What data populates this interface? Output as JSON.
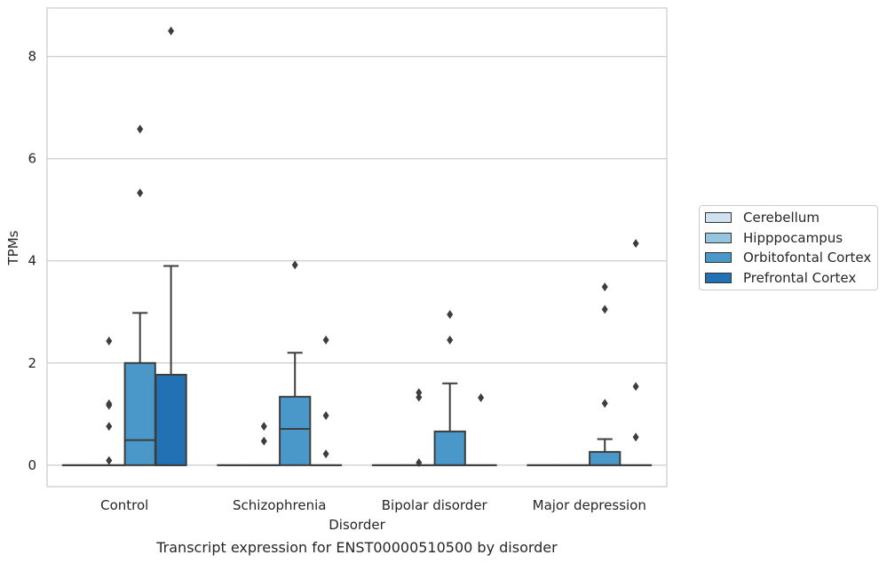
{
  "chart_data": {
    "type": "box",
    "title": "",
    "caption": "Transcript expression for ENST00000510500 by disorder",
    "xlabel": "Disorder",
    "ylabel": "TPMs",
    "categories": [
      "Control",
      "Schizophrenia",
      "Bipolar disorder",
      "Major depression"
    ],
    "ylim": [
      -0.42,
      8.95
    ],
    "yticks": [
      0,
      2,
      4,
      6,
      8
    ],
    "grid": true,
    "legend_position": "right",
    "series": [
      {
        "name": "Cerebellum",
        "color": "#d0e1f2",
        "boxes": [
          {
            "q1": 0,
            "median": 0,
            "q3": 0,
            "whislo": 0,
            "whishi": 0,
            "fliers": []
          },
          {
            "q1": 0,
            "median": 0,
            "q3": 0,
            "whislo": 0,
            "whishi": 0,
            "fliers": []
          },
          {
            "q1": 0,
            "median": 0,
            "q3": 0,
            "whislo": 0,
            "whishi": 0,
            "fliers": []
          },
          {
            "q1": 0,
            "median": 0,
            "q3": 0,
            "whislo": 0,
            "whishi": 0,
            "fliers": []
          }
        ]
      },
      {
        "name": "Hipppocampus",
        "color": "#94c4df",
        "boxes": [
          {
            "q1": 0,
            "median": 0,
            "q3": 0,
            "whislo": 0,
            "whishi": 0,
            "fliers": [
              1.2,
              1.17,
              0.76,
              2.43,
              0.09
            ]
          },
          {
            "q1": 0,
            "median": 0,
            "q3": 0,
            "whislo": 0,
            "whishi": 0,
            "fliers": [
              0.76,
              0.47
            ]
          },
          {
            "q1": 0,
            "median": 0,
            "q3": 0,
            "whislo": 0,
            "whishi": 0,
            "fliers": [
              1.42,
              1.33,
              0.05
            ]
          },
          {
            "q1": 0,
            "median": 0,
            "q3": 0,
            "whislo": 0,
            "whishi": 0,
            "fliers": []
          }
        ]
      },
      {
        "name": "Orbitofontal Cortex",
        "color": "#4a98c9",
        "boxes": [
          {
            "q1": 0,
            "median": 0.49,
            "q3": 2.0,
            "whislo": 0,
            "whishi": 2.98,
            "fliers": [
              6.58,
              5.33
            ]
          },
          {
            "q1": 0,
            "median": 0.71,
            "q3": 1.34,
            "whislo": 0,
            "whishi": 2.2,
            "fliers": [
              3.92
            ]
          },
          {
            "q1": 0,
            "median": 0,
            "q3": 0.66,
            "whislo": 0,
            "whishi": 1.6,
            "fliers": [
              2.95,
              2.45
            ]
          },
          {
            "q1": 0,
            "median": 0,
            "q3": 0.26,
            "whislo": 0,
            "whishi": 0.51,
            "fliers": [
              3.49,
              3.05,
              1.21
            ]
          }
        ]
      },
      {
        "name": "Prefrontal Cortex",
        "color": "#2271b5",
        "boxes": [
          {
            "q1": 0,
            "median": 0,
            "q3": 1.77,
            "whislo": 0,
            "whishi": 3.9,
            "fliers": [
              8.5
            ]
          },
          {
            "q1": 0,
            "median": 0,
            "q3": 0,
            "whislo": 0,
            "whishi": 0,
            "fliers": [
              2.45,
              0.97,
              0.22
            ]
          },
          {
            "q1": 0,
            "median": 0,
            "q3": 0,
            "whislo": 0,
            "whishi": 0,
            "fliers": [
              1.32
            ]
          },
          {
            "q1": 0,
            "median": 0,
            "q3": 0,
            "whislo": 0,
            "whishi": 0,
            "fliers": [
              4.34,
              1.54,
              0.55
            ]
          }
        ]
      }
    ]
  }
}
